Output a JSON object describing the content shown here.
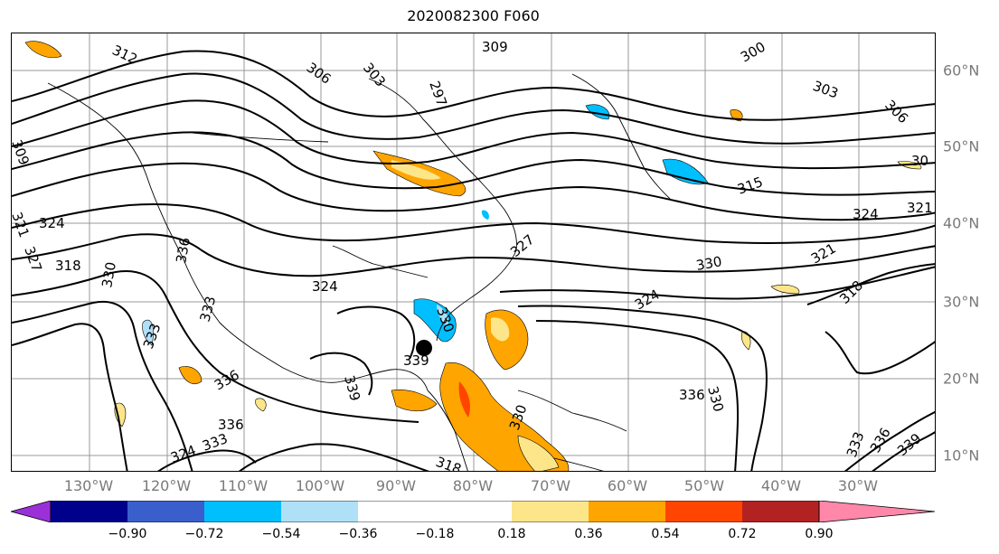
{
  "title": "2020082300 F060",
  "map": {
    "lon_labels": [
      "130°W",
      "120°W",
      "110°W",
      "100°W",
      "90°W",
      "80°W",
      "70°W",
      "60°W",
      "50°W",
      "40°W",
      "30°W"
    ],
    "lat_labels": [
      "60°N",
      "50°N",
      "40°N",
      "30°N",
      "20°N",
      "10°N"
    ],
    "contour_labels": [
      "312",
      "306",
      "303",
      "297",
      "309",
      "300",
      "303",
      "306",
      "30",
      "315",
      "324",
      "321",
      "318",
      "321",
      "324",
      "327",
      "330",
      "324",
      "321",
      "318",
      "330",
      "327",
      "324",
      "309",
      "330",
      "333",
      "336",
      "336",
      "333",
      "339",
      "339",
      "336",
      "330",
      "336",
      "330",
      "333",
      "336",
      "339",
      "333",
      "324",
      "318",
      "336",
      "312",
      "309",
      "315",
      "318",
      "309"
    ],
    "storm_marker": "black-dot"
  },
  "colorbar": {
    "tick_labels": [
      "−0.90",
      "−0.72",
      "−0.54",
      "−0.36",
      "−0.18",
      "0.18",
      "0.36",
      "0.54",
      "0.72",
      "0.90"
    ],
    "colors": [
      "#9b30d9",
      "#00008b",
      "#3a5fcd",
      "#00bfff",
      "#b0e0f8",
      "#ffffff",
      "#fde68a",
      "#ffa500",
      "#ff4500",
      "#b22222",
      "#ff88aa"
    ]
  }
}
